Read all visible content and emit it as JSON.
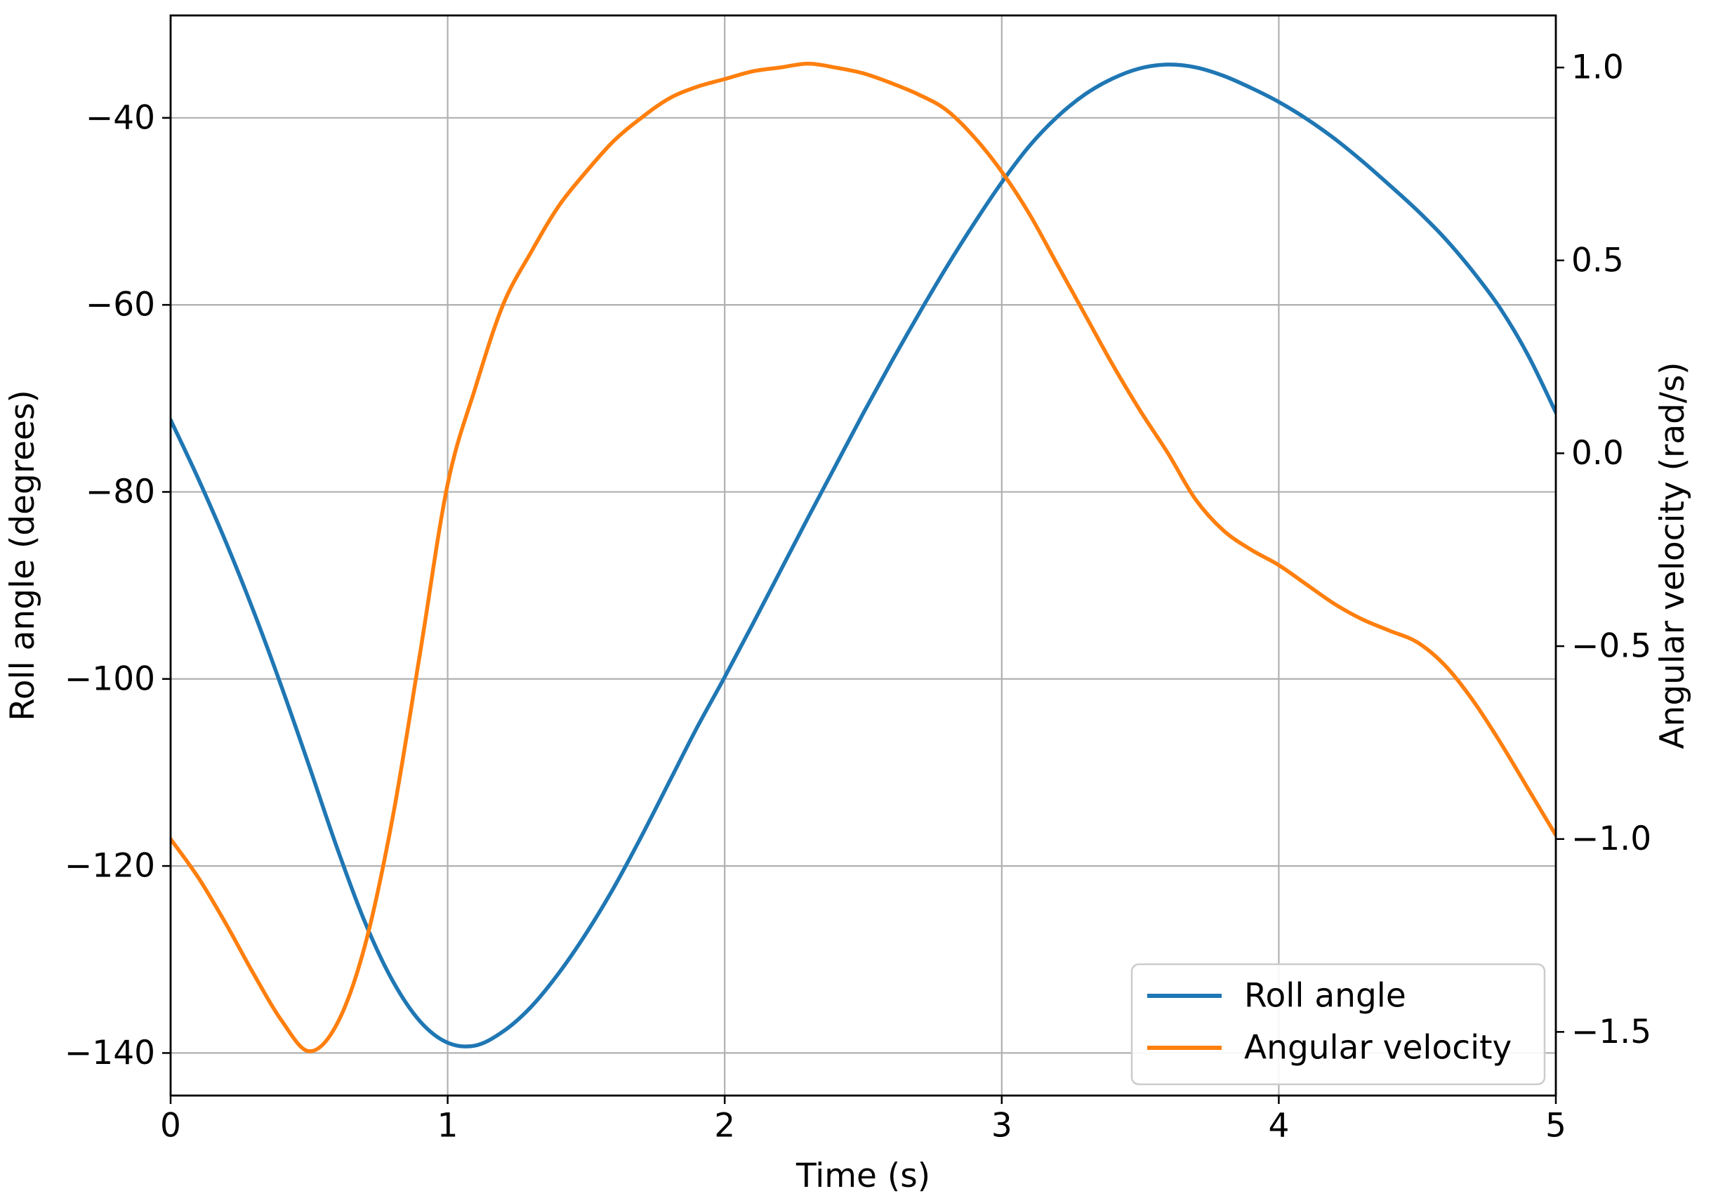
{
  "chart_data": {
    "type": "line",
    "title": "",
    "xlabel": "Time (s)",
    "ylabel_left": "Roll angle (degrees)",
    "ylabel_right": "Angular velocity (rad/s)",
    "grid": true,
    "background_color": "#ffffff",
    "grid_color": "#b0b0b0",
    "spine_color": "#000000",
    "xlim": [
      0,
      5
    ],
    "ylim_left": [
      -144.55,
      -29.05
    ],
    "ylim_right": [
      -1.665,
      1.135
    ],
    "x_ticks": [
      {
        "v": 0,
        "label": "0"
      },
      {
        "v": 1,
        "label": "1"
      },
      {
        "v": 2,
        "label": "2"
      },
      {
        "v": 3,
        "label": "3"
      },
      {
        "v": 4,
        "label": "4"
      },
      {
        "v": 5,
        "label": "5"
      }
    ],
    "y_ticks_left": [
      {
        "v": -40,
        "label": "−40"
      },
      {
        "v": -60,
        "label": "−60"
      },
      {
        "v": -80,
        "label": "−80"
      },
      {
        "v": -100,
        "label": "−100"
      },
      {
        "v": -120,
        "label": "−120"
      },
      {
        "v": -140,
        "label": "−140"
      }
    ],
    "y_ticks_right": [
      {
        "v": 1.0,
        "label": "1.0"
      },
      {
        "v": 0.5,
        "label": "0.5"
      },
      {
        "v": 0.0,
        "label": "0.0"
      },
      {
        "v": -0.5,
        "label": "−0.5"
      },
      {
        "v": -1.0,
        "label": "−1.0"
      },
      {
        "v": -1.5,
        "label": "−1.5"
      }
    ],
    "legend": {
      "position": "lower right",
      "entries": [
        {
          "label": "Roll angle",
          "color": "#1f77b4"
        },
        {
          "label": "Angular velocity",
          "color": "#ff7f0e"
        }
      ]
    },
    "x": [
      0.0,
      0.1,
      0.2,
      0.3,
      0.4,
      0.5,
      0.6,
      0.7,
      0.8,
      0.9,
      1.0,
      1.1,
      1.2,
      1.3,
      1.4,
      1.5,
      1.6,
      1.7,
      1.8,
      1.9,
      2.0,
      2.1,
      2.2,
      2.3,
      2.4,
      2.5,
      2.6,
      2.7,
      2.8,
      2.9,
      3.0,
      3.1,
      3.2,
      3.3,
      3.4,
      3.5,
      3.6,
      3.7,
      3.8,
      3.9,
      4.0,
      4.1,
      4.2,
      4.3,
      4.4,
      4.5,
      4.6,
      4.7,
      4.8,
      4.9,
      5.0
    ],
    "series": [
      {
        "name": "Roll angle",
        "axis": "left",
        "color": "#1f77b4",
        "values": [
          -72.3,
          -78.6,
          -85.4,
          -92.8,
          -100.8,
          -109.3,
          -118.0,
          -125.9,
          -132.2,
          -136.6,
          -138.9,
          -139.2,
          -137.7,
          -135.1,
          -131.5,
          -127.2,
          -122.3,
          -116.8,
          -111.0,
          -105.2,
          -99.8,
          -94.2,
          -88.5,
          -82.8,
          -77.2,
          -71.6,
          -66.2,
          -61.0,
          -56.0,
          -51.3,
          -46.9,
          -43.0,
          -39.9,
          -37.5,
          -35.8,
          -34.7,
          -34.3,
          -34.6,
          -35.5,
          -36.8,
          -38.3,
          -40.1,
          -42.2,
          -44.6,
          -47.2,
          -49.9,
          -52.9,
          -56.4,
          -60.4,
          -65.4,
          -71.5
        ]
      },
      {
        "name": "Angular velocity",
        "axis": "right",
        "color": "#ff7f0e",
        "values": [
          -1.0,
          -1.1,
          -1.22,
          -1.35,
          -1.47,
          -1.55,
          -1.48,
          -1.28,
          -0.95,
          -0.52,
          -0.08,
          0.17,
          0.385,
          0.52,
          0.64,
          0.73,
          0.81,
          0.87,
          0.92,
          0.95,
          0.97,
          0.99,
          1.0,
          1.01,
          1.0,
          0.985,
          0.96,
          0.93,
          0.89,
          0.82,
          0.73,
          0.62,
          0.49,
          0.36,
          0.23,
          0.11,
          0.0,
          -0.12,
          -0.2,
          -0.25,
          -0.29,
          -0.34,
          -0.39,
          -0.43,
          -0.46,
          -0.49,
          -0.55,
          -0.64,
          -0.75,
          -0.87,
          -0.99
        ]
      }
    ]
  }
}
